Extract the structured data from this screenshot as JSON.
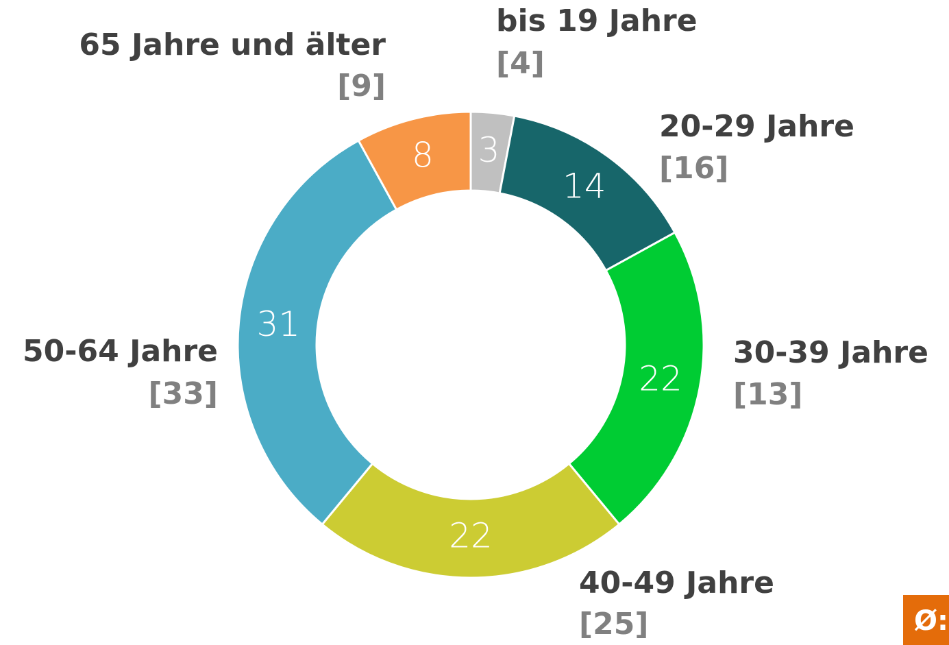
{
  "chart_data": {
    "type": "donut",
    "categories": [
      "bis 19 Jahre",
      "20-29 Jahre",
      "30-39 Jahre",
      "40-49 Jahre",
      "50-64 Jahre",
      "65 Jahre und älter"
    ],
    "values": [
      3,
      14,
      22,
      22,
      31,
      8
    ],
    "comparison_labels": [
      "[4]",
      "[16]",
      "[13]",
      "[25]",
      "[33]",
      "[9]"
    ],
    "colors": [
      "#c0c0c0",
      "#17666a",
      "#00cc33",
      "#cccc33",
      "#4bacc6",
      "#f79646"
    ]
  },
  "badge": "Ø:"
}
